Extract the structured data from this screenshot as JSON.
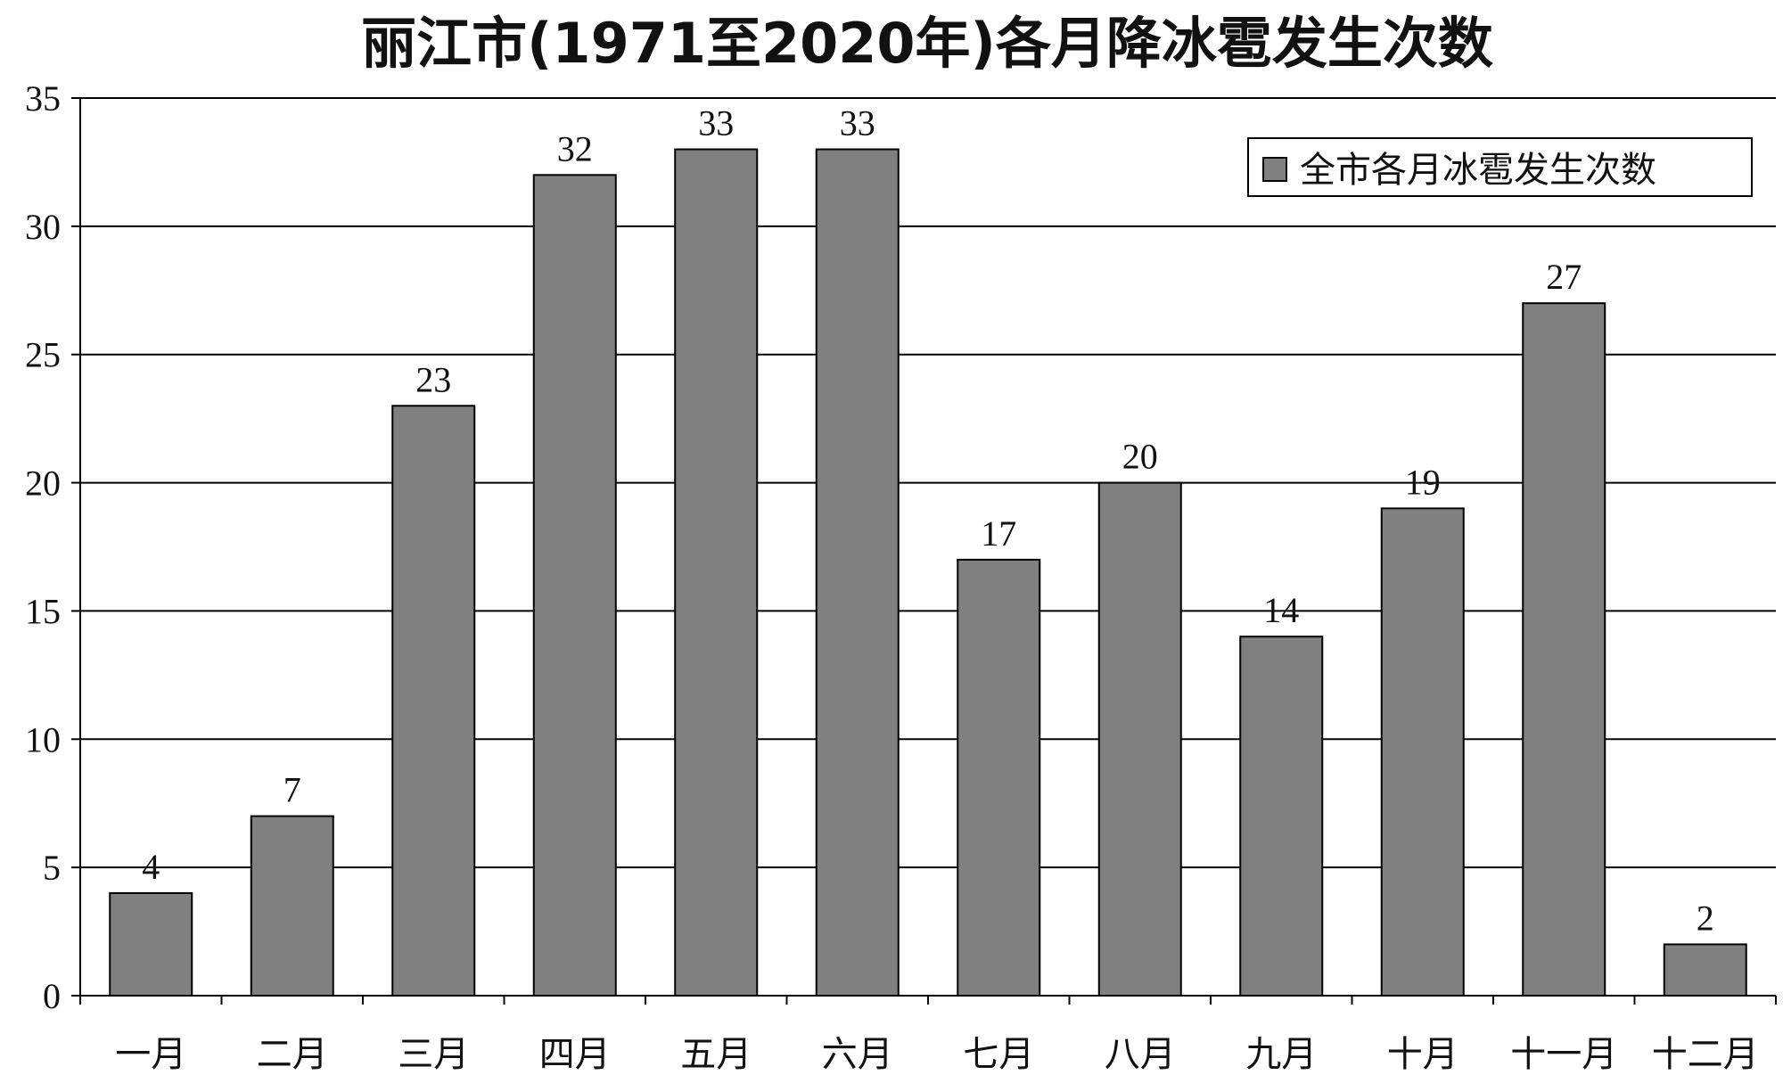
{
  "chart_data": {
    "type": "bar",
    "title": "丽江市(1971至2020年)各月降冰雹发生次数",
    "xlabel": "",
    "ylabel": "",
    "categories": [
      "一月",
      "二月",
      "三月",
      "四月",
      "五月",
      "六月",
      "七月",
      "八月",
      "九月",
      "十月",
      "十一月",
      "十二月"
    ],
    "series": [
      {
        "name": "全市各月冰雹发生次数",
        "values": [
          4,
          7,
          23,
          32,
          33,
          33,
          17,
          20,
          14,
          19,
          27,
          2
        ],
        "color": "#808080"
      }
    ],
    "ylim": [
      0,
      35
    ],
    "yticks": [
      "0",
      "5",
      "10",
      "15",
      "20",
      "25",
      "30",
      "35"
    ],
    "data_labels": true,
    "grid": "horizontal",
    "legend_position": "top-right"
  }
}
